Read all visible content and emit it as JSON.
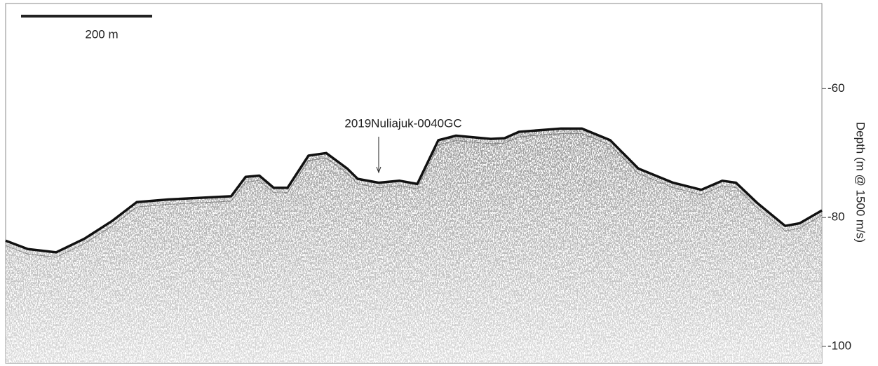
{
  "chart_data": {
    "type": "profile",
    "x": [
      0,
      34,
      77,
      120,
      163,
      200,
      248,
      344,
      366,
      387,
      409,
      430,
      462,
      489,
      521,
      537,
      569,
      601,
      628,
      660,
      687,
      740,
      761,
      783,
      847,
      879,
      922,
      965,
      1018,
      1061,
      1093,
      1114,
      1147,
      1189,
      1211,
      1245
    ],
    "values": [
      -83.6,
      -84.9,
      -85.4,
      -83.3,
      -80.5,
      -77.6,
      -77.2,
      -76.7,
      -73.7,
      -73.5,
      -75.4,
      -75.4,
      -70.4,
      -70.0,
      -72.4,
      -74.0,
      -74.6,
      -74.3,
      -74.8,
      -68.0,
      -67.3,
      -67.8,
      -67.7,
      -66.7,
      -66.2,
      -66.2,
      -68.0,
      -72.4,
      -74.6,
      -75.7,
      -74.3,
      -74.6,
      -77.8,
      -81.3,
      -80.9,
      -78.9
    ],
    "color": "#111111",
    "xlim": [
      0,
      1245
    ],
    "ylim": [
      -102.6,
      -46.8
    ],
    "yticks": [
      -60,
      -80,
      -100
    ],
    "ylabel": "Depth (m @ 1500 m/s)",
    "annotation": {
      "text": "2019Nuliajuk-0040GC",
      "x": 569
    },
    "scale_bar": {
      "value": 200,
      "label": "200 m"
    }
  }
}
